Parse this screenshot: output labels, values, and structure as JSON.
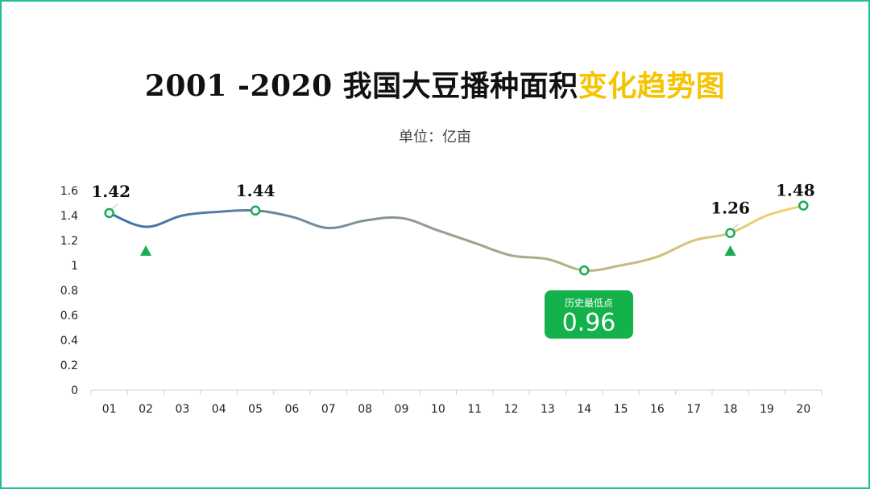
{
  "title": {
    "main": "2001 -2020 我国大豆播种面积",
    "highlight": "变化趋势图"
  },
  "subtitle": "单位：亿亩",
  "colors": {
    "frame": "#1fbf9a",
    "highlight": "#f5c400",
    "callout": "#13b24a",
    "marker": "#1aab55",
    "line_start": "#3a6db0",
    "line_end": "#f6d46a"
  },
  "callout": {
    "label": "历史最低点",
    "value": "0.96"
  },
  "chart_data": {
    "type": "line",
    "title": "2001 -2020 我国大豆播种面积变化趋势图",
    "ylabel": "亿亩",
    "categories": [
      "01",
      "02",
      "03",
      "04",
      "05",
      "06",
      "07",
      "08",
      "09",
      "10",
      "11",
      "12",
      "13",
      "14",
      "15",
      "16",
      "17",
      "18",
      "19",
      "20"
    ],
    "values": [
      1.42,
      1.31,
      1.4,
      1.43,
      1.44,
      1.39,
      1.3,
      1.36,
      1.38,
      1.28,
      1.18,
      1.08,
      1.05,
      0.96,
      1.0,
      1.07,
      1.2,
      1.26,
      1.4,
      1.48
    ],
    "ylim": [
      0,
      1.6
    ],
    "yticks": [
      "0",
      "0.2",
      "0.4",
      "0.6",
      "0.8",
      "1",
      "1.2",
      "1.4",
      "1.6"
    ],
    "highlighted_points": [
      {
        "category": "01",
        "label": "1.42"
      },
      {
        "category": "05",
        "label": "1.44"
      },
      {
        "category": "14",
        "label": ""
      },
      {
        "category": "18",
        "label": "1.26"
      },
      {
        "category": "20",
        "label": "1.48"
      }
    ],
    "up_markers": [
      "02",
      "18"
    ],
    "grid": false
  }
}
